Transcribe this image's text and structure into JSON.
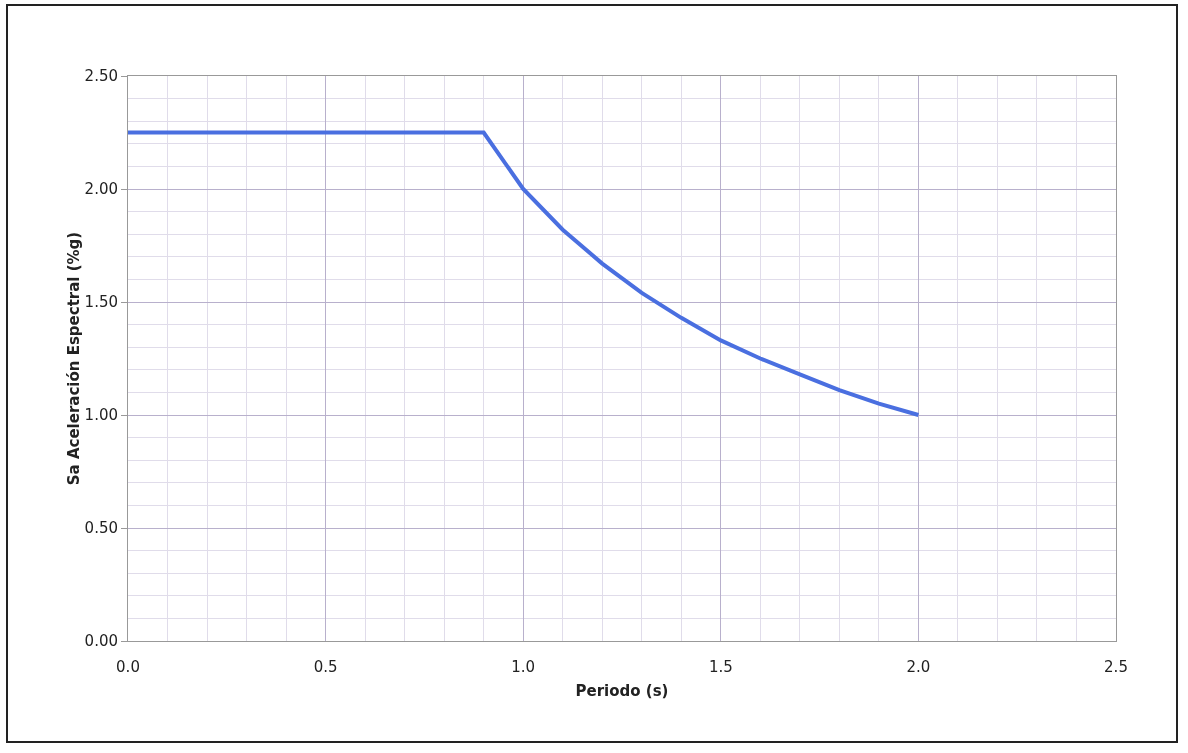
{
  "chart_data": {
    "type": "line",
    "xlabel": "Periodo (s)",
    "ylabel": "Sa Aceleración Espectral (%g)",
    "x": [
      0,
      0.9,
      1.0,
      1.1,
      1.2,
      1.3,
      1.4,
      1.5,
      1.6,
      1.7,
      1.8,
      1.9,
      2.0
    ],
    "series": [
      {
        "color": "#4a6fe0",
        "values": [
          2.25,
          2.25,
          2.0,
          1.82,
          1.67,
          1.54,
          1.43,
          1.33,
          1.25,
          1.18,
          1.11,
          1.05,
          1.0
        ]
      }
    ],
    "xlim": [
      0,
      2.5
    ],
    "xticks": [
      {
        "value": 0,
        "label": "0.0"
      },
      {
        "value": 0.5,
        "label": "0.5"
      },
      {
        "value": 1,
        "label": "1.0"
      },
      {
        "value": 1.5,
        "label": "1.5"
      },
      {
        "value": 2,
        "label": "2.0"
      },
      {
        "value": 2.5,
        "label": "2.5"
      }
    ],
    "ylim": [
      0,
      2.5
    ],
    "yticks": [
      {
        "value": 0,
        "label": "0.00"
      },
      {
        "value": 0.5,
        "label": "0.50"
      },
      {
        "value": 1,
        "label": "1.00"
      },
      {
        "value": 1.5,
        "label": "1.50"
      },
      {
        "value": 2,
        "label": "2.00"
      },
      {
        "value": 2.5,
        "label": "2.50"
      }
    ],
    "grid": true,
    "marker": "none",
    "line_style": "solid"
  }
}
